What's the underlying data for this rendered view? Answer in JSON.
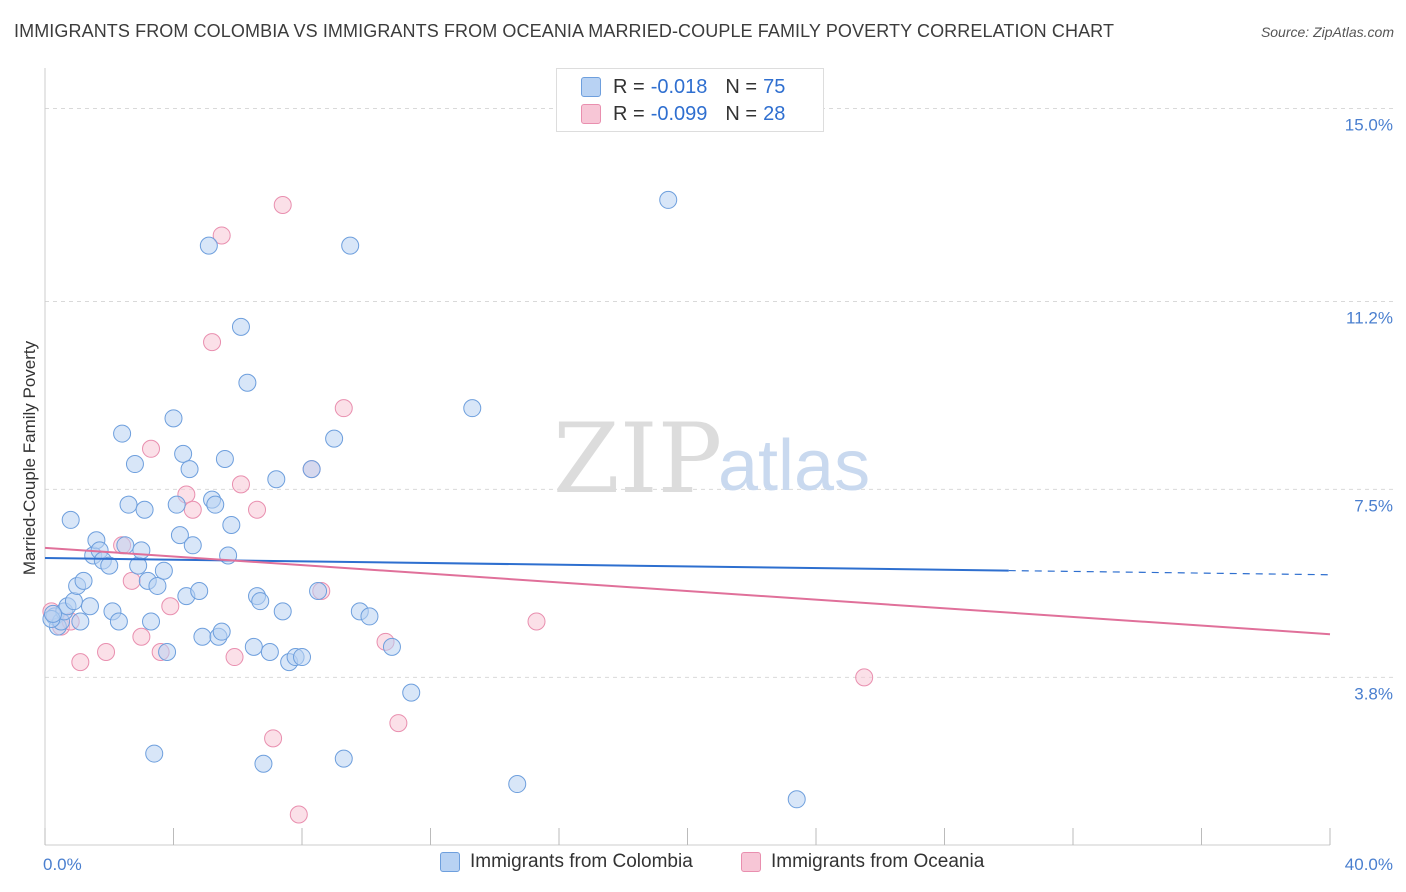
{
  "title": "IMMIGRANTS FROM COLOMBIA VS IMMIGRANTS FROM OCEANIA MARRIED-COUPLE FAMILY POVERTY CORRELATION CHART",
  "source": "Source: ZipAtlas.com",
  "watermark": {
    "zip": "ZIP",
    "atlas": "atlas"
  },
  "legend": {
    "colombia": {
      "r_label": "R =",
      "r_value": "-0.018",
      "n_label": "N =",
      "n_value": "75"
    },
    "oceania": {
      "r_label": "R =",
      "r_value": "-0.099",
      "n_label": "N =",
      "n_value": "28"
    }
  },
  "colors": {
    "colombia_fill": "#b8d2f3",
    "colombia_stroke": "#6e9fdd",
    "colombia_line": "#2e6fcf",
    "oceania_fill": "#f7c6d6",
    "oceania_stroke": "#e98faf",
    "oceania_line": "#e0709a",
    "tick_label": "#4a7fcf",
    "grid": "#d9d9d9"
  },
  "chart_data": {
    "type": "scatter",
    "title": "IMMIGRANTS FROM COLOMBIA VS IMMIGRANTS FROM OCEANIA MARRIED-COUPLE FAMILY POVERTY CORRELATION CHART",
    "xlabel": "",
    "ylabel": "Married-Couple Family Poverty",
    "xlim": [
      0,
      40
    ],
    "ylim": [
      0.5,
      15.6
    ],
    "x_tick_labels": [
      "0.0%",
      "40.0%"
    ],
    "y_ticks": [
      3.8,
      7.5,
      11.2,
      15.0
    ],
    "y_tick_labels": [
      "3.8%",
      "7.5%",
      "11.2%",
      "15.0%"
    ],
    "grid": true,
    "legend_placement": "top-center",
    "series": [
      {
        "name": "Immigrants from Colombia",
        "points": [
          [
            0.3,
            5.0
          ],
          [
            0.4,
            4.8
          ],
          [
            0.5,
            4.9
          ],
          [
            0.6,
            5.1
          ],
          [
            0.7,
            5.2
          ],
          [
            0.8,
            6.9
          ],
          [
            0.9,
            5.3
          ],
          [
            1.0,
            5.6
          ],
          [
            1.1,
            4.9
          ],
          [
            1.2,
            5.7
          ],
          [
            1.4,
            5.2
          ],
          [
            1.5,
            6.2
          ],
          [
            1.6,
            6.5
          ],
          [
            1.7,
            6.3
          ],
          [
            1.8,
            6.1
          ],
          [
            2.0,
            6.0
          ],
          [
            2.1,
            5.1
          ],
          [
            2.3,
            4.9
          ],
          [
            2.4,
            8.6
          ],
          [
            2.5,
            6.4
          ],
          [
            2.6,
            7.2
          ],
          [
            2.8,
            8.0
          ],
          [
            2.9,
            6.0
          ],
          [
            3.0,
            6.3
          ],
          [
            3.1,
            7.1
          ],
          [
            3.2,
            5.7
          ],
          [
            3.3,
            4.9
          ],
          [
            3.4,
            2.3
          ],
          [
            3.5,
            5.6
          ],
          [
            3.7,
            5.9
          ],
          [
            3.8,
            4.3
          ],
          [
            4.0,
            8.9
          ],
          [
            4.1,
            7.2
          ],
          [
            4.2,
            6.6
          ],
          [
            4.3,
            8.2
          ],
          [
            4.4,
            5.4
          ],
          [
            4.5,
            7.9
          ],
          [
            4.6,
            6.4
          ],
          [
            4.8,
            5.5
          ],
          [
            4.9,
            4.6
          ],
          [
            5.1,
            12.3
          ],
          [
            5.2,
            7.3
          ],
          [
            5.3,
            7.2
          ],
          [
            5.4,
            4.6
          ],
          [
            5.5,
            4.7
          ],
          [
            5.6,
            8.1
          ],
          [
            5.7,
            6.2
          ],
          [
            5.8,
            6.8
          ],
          [
            6.1,
            10.7
          ],
          [
            6.3,
            9.6
          ],
          [
            6.5,
            4.4
          ],
          [
            6.6,
            5.4
          ],
          [
            6.7,
            5.3
          ],
          [
            6.8,
            2.1
          ],
          [
            7.0,
            4.3
          ],
          [
            7.2,
            7.7
          ],
          [
            7.4,
            5.1
          ],
          [
            7.6,
            4.1
          ],
          [
            7.8,
            4.2
          ],
          [
            8.0,
            4.2
          ],
          [
            8.3,
            7.9
          ],
          [
            8.5,
            5.5
          ],
          [
            9.0,
            8.5
          ],
          [
            9.3,
            2.2
          ],
          [
            9.5,
            12.3
          ],
          [
            9.8,
            5.1
          ],
          [
            10.1,
            5.0
          ],
          [
            10.8,
            4.4
          ],
          [
            11.4,
            3.5
          ],
          [
            13.3,
            9.1
          ],
          [
            14.7,
            1.7
          ],
          [
            19.4,
            13.2
          ],
          [
            23.4,
            1.4
          ],
          [
            0.2,
            4.95
          ],
          [
            0.25,
            5.05
          ]
        ]
      },
      {
        "name": "Immigrants from Oceania",
        "points": [
          [
            0.2,
            5.1
          ],
          [
            0.5,
            4.8
          ],
          [
            0.8,
            4.9
          ],
          [
            1.1,
            4.1
          ],
          [
            1.9,
            4.3
          ],
          [
            2.4,
            6.4
          ],
          [
            2.7,
            5.7
          ],
          [
            3.0,
            4.6
          ],
          [
            3.3,
            8.3
          ],
          [
            3.6,
            4.3
          ],
          [
            3.9,
            5.2
          ],
          [
            4.4,
            7.4
          ],
          [
            4.6,
            7.1
          ],
          [
            5.2,
            10.4
          ],
          [
            5.5,
            12.5
          ],
          [
            5.9,
            4.2
          ],
          [
            6.1,
            7.6
          ],
          [
            6.6,
            7.1
          ],
          [
            7.1,
            2.6
          ],
          [
            7.4,
            13.1
          ],
          [
            7.9,
            1.1
          ],
          [
            8.3,
            7.9
          ],
          [
            8.6,
            5.5
          ],
          [
            9.3,
            9.1
          ],
          [
            10.6,
            4.5
          ],
          [
            11.0,
            2.9
          ],
          [
            15.3,
            4.9
          ],
          [
            25.5,
            3.8
          ]
        ]
      }
    ],
    "trendlines": [
      {
        "series": "Immigrants from Colombia",
        "x": [
          0,
          40
        ],
        "y": [
          6.15,
          5.82
        ],
        "solid_until_x": 30
      },
      {
        "series": "Immigrants from Oceania",
        "x": [
          0,
          40
        ],
        "y": [
          6.35,
          4.65
        ]
      }
    ]
  },
  "bottom_legend": {
    "colombia": "Immigrants from Colombia",
    "oceania": "Immigrants from Oceania"
  }
}
